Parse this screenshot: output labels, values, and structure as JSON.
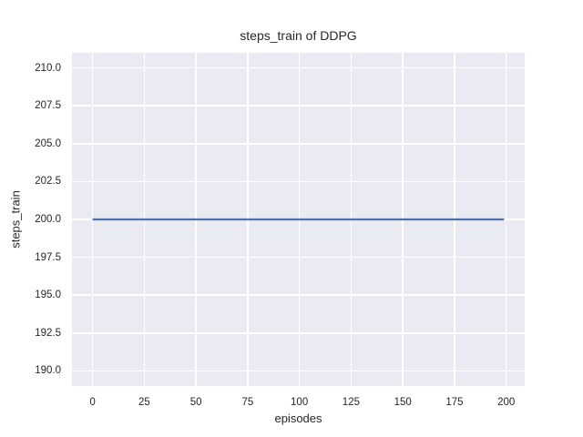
{
  "chart_data": {
    "type": "line",
    "title": "steps_train of DDPG",
    "xlabel": "episodes",
    "ylabel": "steps_train",
    "xticks": [
      0,
      25,
      50,
      75,
      100,
      125,
      150,
      175,
      200
    ],
    "xtick_labels": [
      "0",
      "25",
      "50",
      "75",
      "100",
      "125",
      "150",
      "175",
      "200"
    ],
    "yticks": [
      190.0,
      192.5,
      195.0,
      197.5,
      200.0,
      202.5,
      205.0,
      207.5,
      210.0
    ],
    "ytick_labels": [
      "190.0",
      "192.5",
      "195.0",
      "197.5",
      "200.0",
      "202.5",
      "205.0",
      "207.5",
      "210.0"
    ],
    "xlim": [
      -9.95,
      208.95
    ],
    "ylim": [
      189,
      211
    ],
    "grid": true,
    "legend": null,
    "series": [
      {
        "name": "steps_train",
        "color": "#4C72B0",
        "x": [
          0,
          199
        ],
        "y": [
          200,
          200
        ]
      }
    ],
    "colors": {
      "figure_background": "#FFFFFF",
      "plot_background": "#EAEAF2",
      "grid": "#FFFFFF",
      "text": "#262626",
      "line": "#4C72B0"
    }
  }
}
